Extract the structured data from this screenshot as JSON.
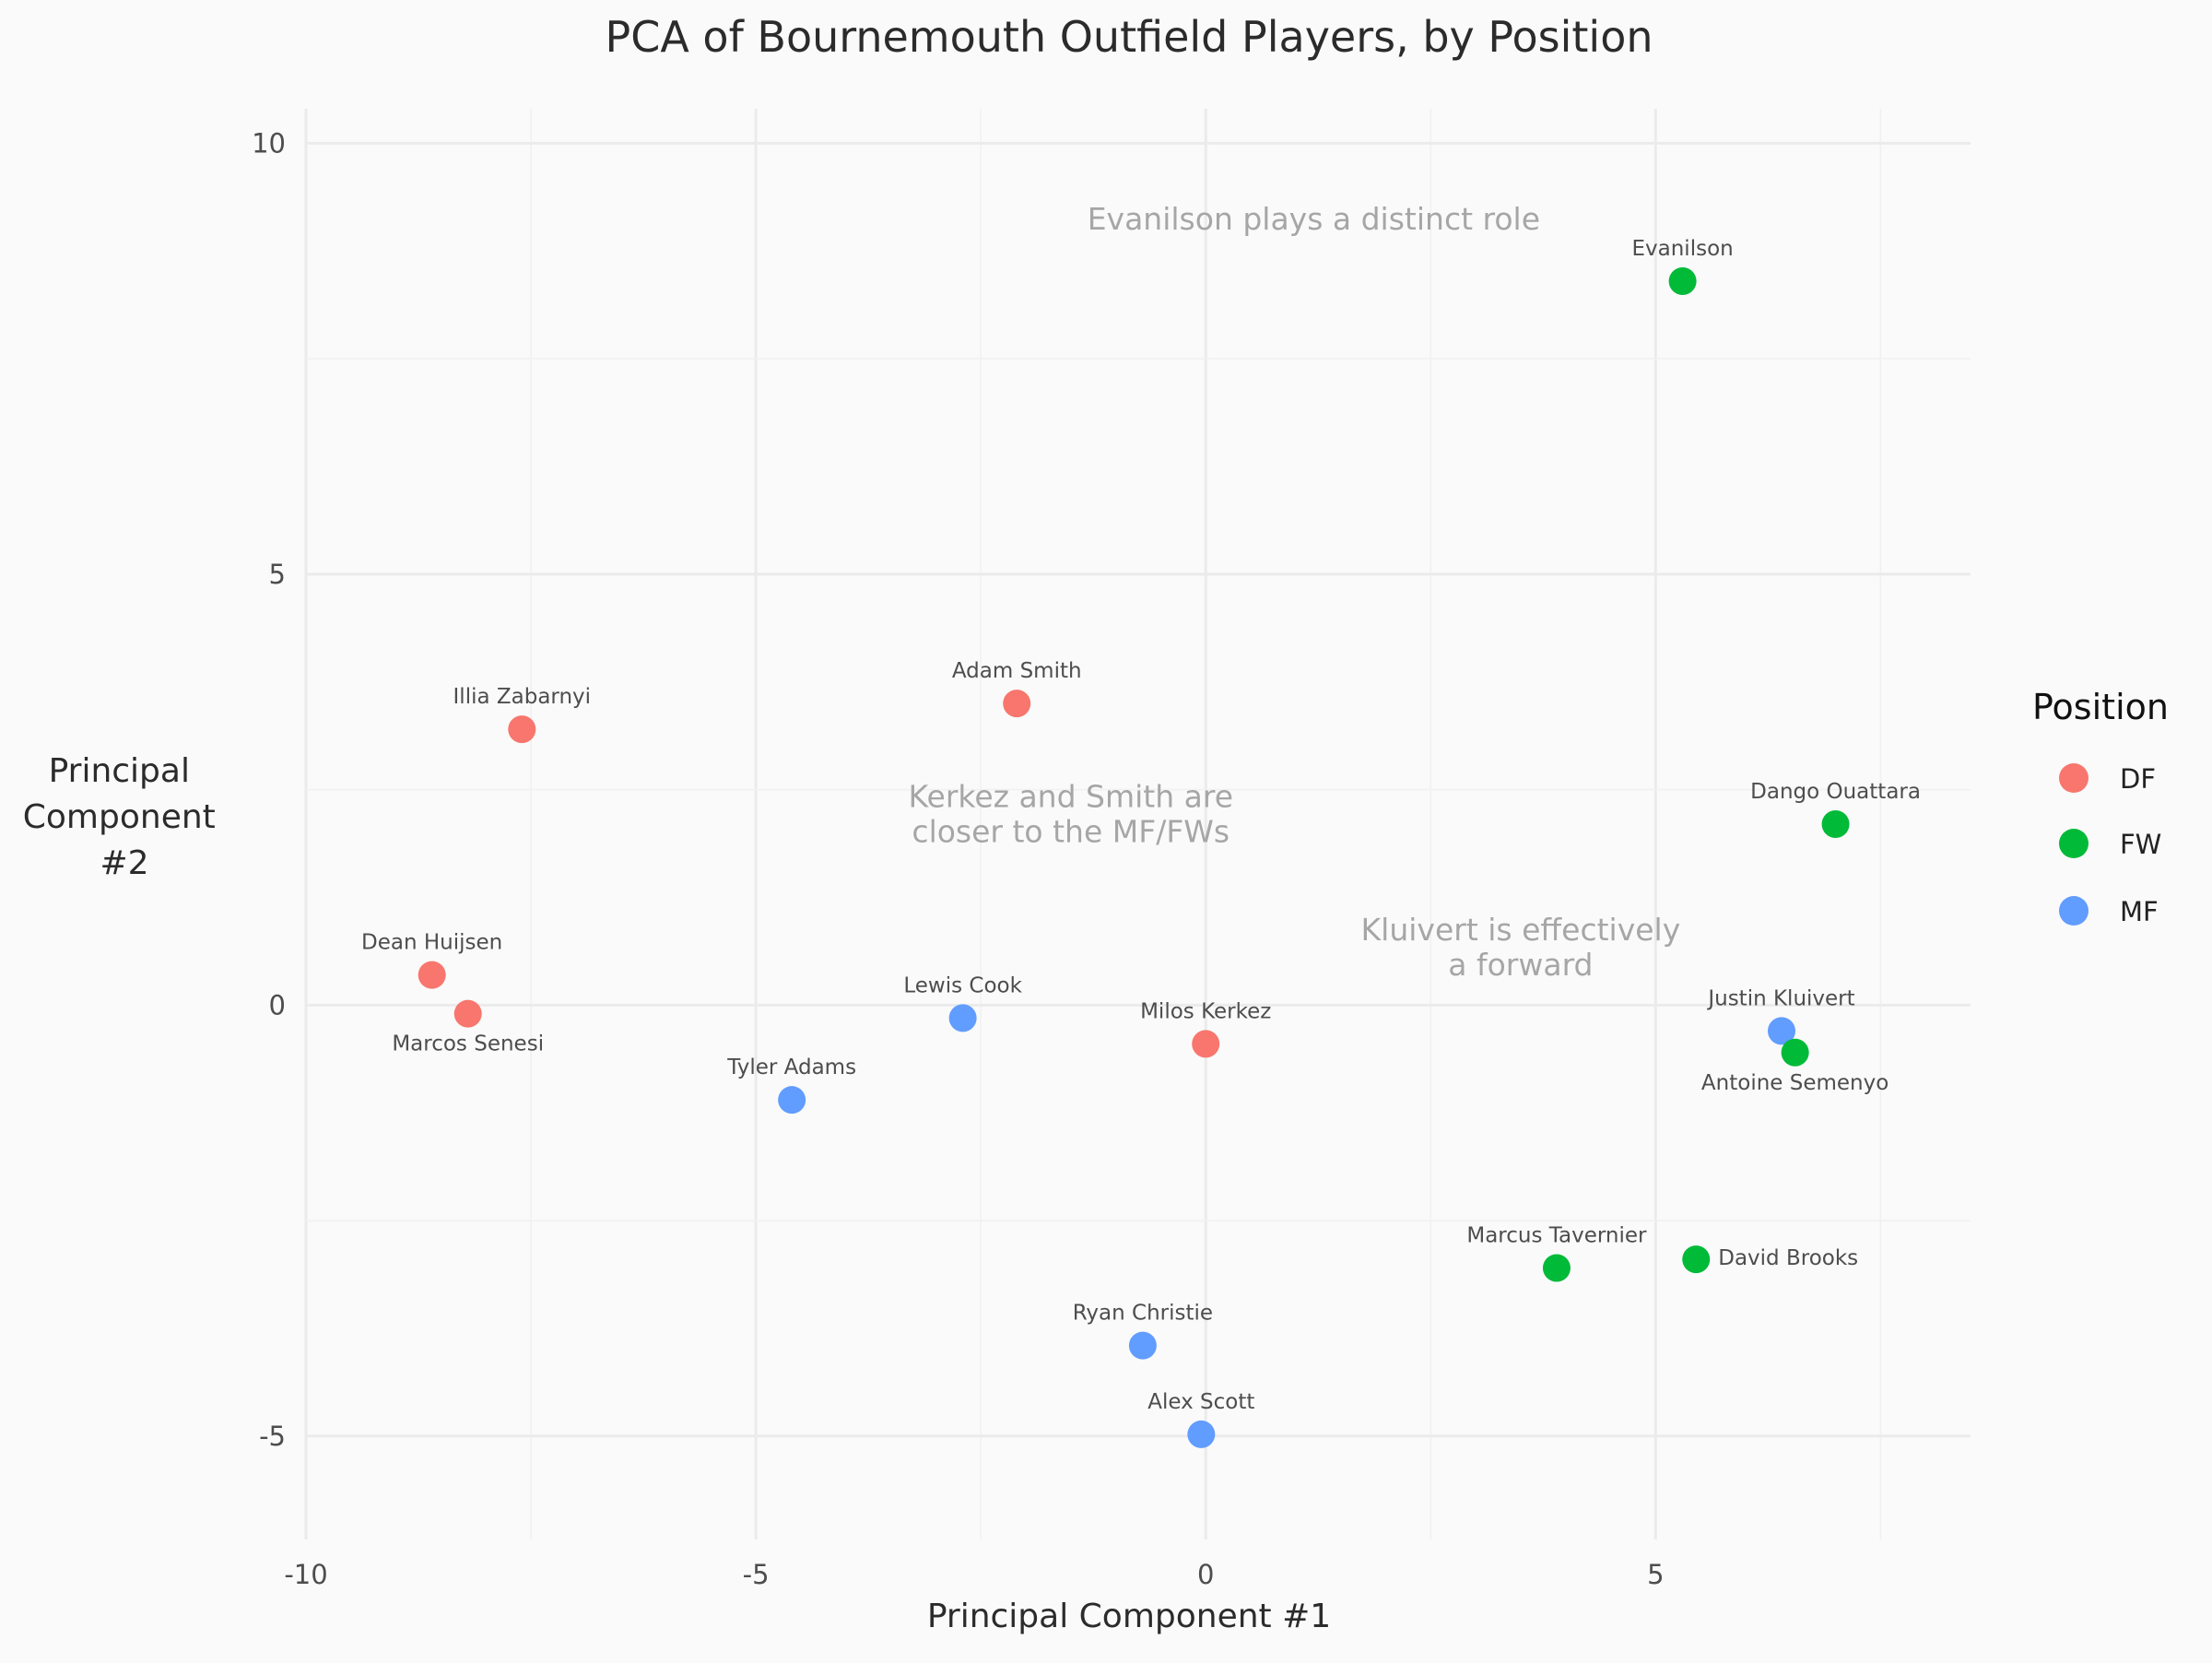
{
  "chart_data": {
    "type": "scatter",
    "title": "PCA of Bournemouth Outfield Players, by Position",
    "xlabel": "Principal Component #1",
    "ylabel": [
      "Principal",
      "Component",
      "#2"
    ],
    "xlim": [
      -10,
      8.5
    ],
    "ylim": [
      -6.2,
      10.4
    ],
    "x_ticks": [
      -10,
      -5,
      0,
      5
    ],
    "y_ticks": [
      -5,
      0,
      5,
      10
    ],
    "x_tick_labels": [
      "-10",
      "-5",
      "0",
      "5"
    ],
    "y_tick_labels": [
      "-5",
      "0",
      "5",
      "10"
    ],
    "grid": true,
    "legend": {
      "title": "Position",
      "placement": "right",
      "items": [
        {
          "name": "DF",
          "color": "#F8766D"
        },
        {
          "name": "FW",
          "color": "#00BA38"
        },
        {
          "name": "MF",
          "color": "#619CFF"
        }
      ]
    },
    "points": [
      {
        "label": "Evanilson",
        "x": 5.3,
        "y": 8.4,
        "group": "FW",
        "label_pos": "above"
      },
      {
        "label": "Adam Smith",
        "x": -2.1,
        "y": 3.5,
        "group": "DF",
        "label_pos": "above"
      },
      {
        "label": "Illia Zabarnyi",
        "x": -7.6,
        "y": 3.2,
        "group": "DF",
        "label_pos": "above"
      },
      {
        "label": "Dango Ouattara",
        "x": 7.0,
        "y": 2.1,
        "group": "FW",
        "label_pos": "above"
      },
      {
        "label": "Dean Huijsen",
        "x": -8.6,
        "y": 0.35,
        "group": "DF",
        "label_pos": "above"
      },
      {
        "label": "Marcos Senesi",
        "x": -8.2,
        "y": -0.1,
        "group": "DF",
        "label_pos": "below"
      },
      {
        "label": "Lewis Cook",
        "x": -2.7,
        "y": -0.15,
        "group": "MF",
        "label_pos": "above"
      },
      {
        "label": "Milos Kerkez",
        "x": 0.0,
        "y": -0.45,
        "group": "DF",
        "label_pos": "above"
      },
      {
        "label": "Tyler Adams",
        "x": -4.6,
        "y": -1.1,
        "group": "MF",
        "label_pos": "above"
      },
      {
        "label": "Justin Kluivert",
        "x": 6.4,
        "y": -0.3,
        "group": "MF",
        "label_pos": "above"
      },
      {
        "label": "Antoine Semenyo",
        "x": 6.55,
        "y": -0.55,
        "group": "FW",
        "label_pos": "below"
      },
      {
        "label": "Marcus Tavernier",
        "x": 3.9,
        "y": -3.05,
        "group": "FW",
        "label_pos": "above"
      },
      {
        "label": "David Brooks",
        "x": 5.45,
        "y": -2.95,
        "group": "FW",
        "label_pos": "right"
      },
      {
        "label": "Ryan Christie",
        "x": -0.7,
        "y": -3.95,
        "group": "MF",
        "label_pos": "above"
      },
      {
        "label": "Alex Scott",
        "x": -0.05,
        "y": -4.98,
        "group": "MF",
        "label_pos": "above"
      }
    ],
    "annotations": [
      {
        "lines": [
          "Evanilson plays a distinct role"
        ],
        "x": 1.2,
        "y": 9.0
      },
      {
        "lines": [
          "Kerkez and Smith are",
          "closer to the MF/FWs"
        ],
        "x": -1.5,
        "y": 2.3
      },
      {
        "lines": [
          "Kluivert is effectively",
          "a forward"
        ],
        "x": 3.5,
        "y": 0.75
      }
    ]
  }
}
